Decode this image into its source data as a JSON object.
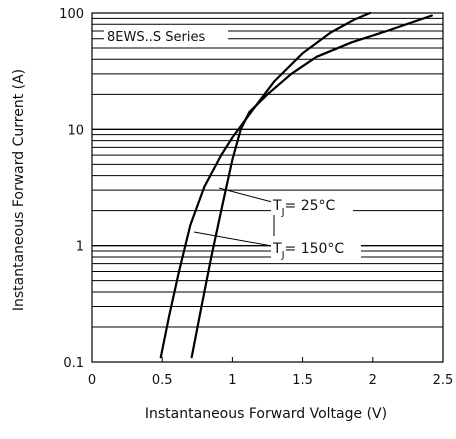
{
  "chart_data": {
    "type": "line",
    "title": "8EWS..S Series",
    "xlabel": "Instantaneous Forward Voltage (V)",
    "ylabel": "Instantaneous Forward Current (A)",
    "xlim": [
      0,
      2.5
    ],
    "ylim": [
      0.1,
      100
    ],
    "y_scale": "log",
    "grid": true,
    "x_ticks": [
      0,
      0.5,
      1,
      1.5,
      2,
      2.5
    ],
    "x_tick_labels": [
      "0",
      "0.5",
      "1",
      "1.5",
      "2",
      "2.5"
    ],
    "y_ticks": [
      0.1,
      1,
      10,
      100
    ],
    "y_tick_labels": [
      "0.1",
      "1",
      "10",
      "100"
    ],
    "series": [
      {
        "label": "T_J = 25°C",
        "label_main": "T",
        "label_sub": "J",
        "label_rest": "= 25°C",
        "x": [
          0.71,
          0.78,
          0.85,
          0.92,
          1.0,
          1.06,
          1.12,
          1.25,
          1.42,
          1.6,
          1.85,
          2.1,
          2.42
        ],
        "y": [
          0.11,
          0.3,
          0.8,
          2.0,
          5.5,
          10.0,
          14.0,
          20.0,
          30.0,
          42.0,
          56.0,
          70.0,
          95.0
        ]
      },
      {
        "label": "T_J = 150°C",
        "label_main": "T",
        "label_sub": "J",
        "label_rest": "= 150°C",
        "x": [
          0.49,
          0.55,
          0.62,
          0.7,
          0.8,
          0.92,
          1.0,
          1.15,
          1.3,
          1.5,
          1.7,
          1.87,
          1.98
        ],
        "y": [
          0.11,
          0.25,
          0.6,
          1.5,
          3.2,
          6.0,
          8.5,
          15.0,
          26.0,
          45.0,
          68.0,
          88.0,
          100.0
        ]
      }
    ]
  }
}
